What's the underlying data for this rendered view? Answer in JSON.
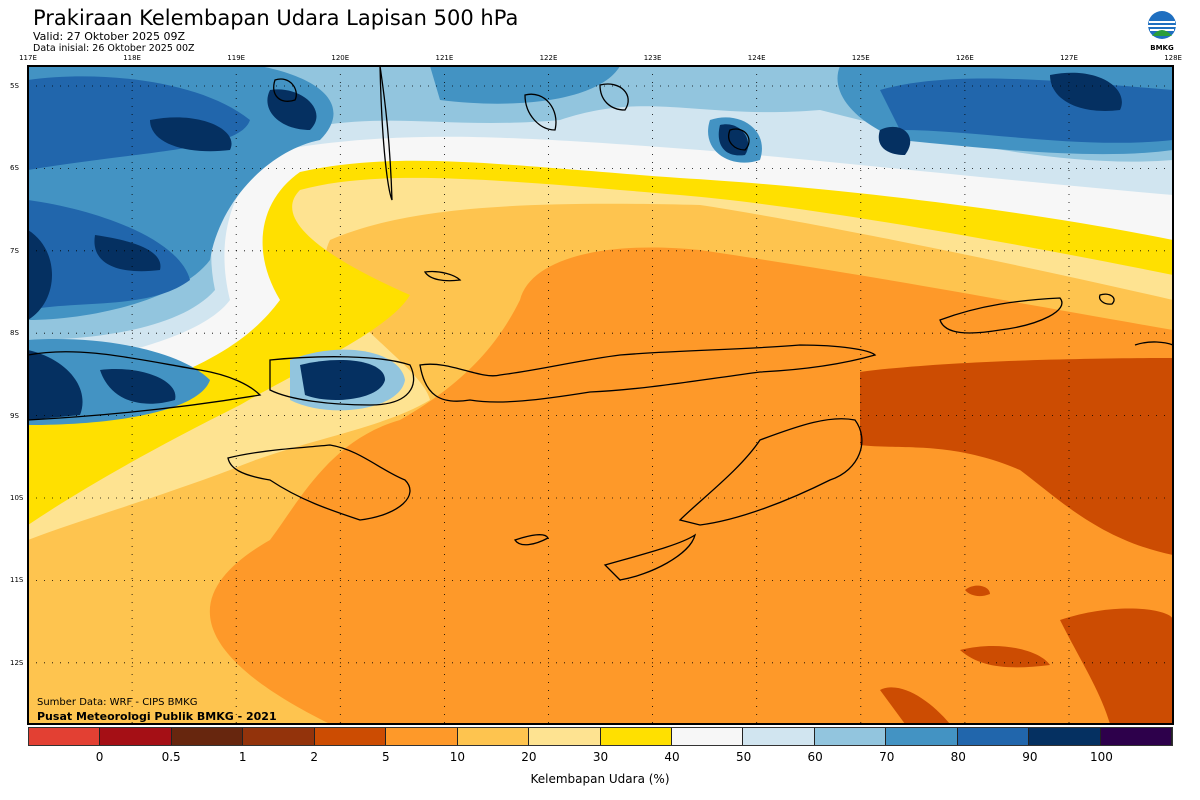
{
  "header": {
    "title": "Prakiraan Kelembapan Udara Lapisan 500 hPa",
    "valid": "Valid: 27 Oktober 2025 09Z",
    "init": "Data inisial: 26 Oktober 2025 00Z"
  },
  "logo": {
    "text": "BMKG"
  },
  "axes": {
    "lon_ticks": [
      "117E",
      "118E",
      "119E",
      "120E",
      "121E",
      "122E",
      "123E",
      "124E",
      "125E",
      "126E",
      "127E",
      "128E"
    ],
    "lat_ticks": [
      "5S",
      "6S",
      "7S",
      "8S",
      "9S",
      "10S",
      "11S",
      "12S"
    ]
  },
  "footer": {
    "source": "Sumber Data: WRF - CIPS BMKG",
    "credit": "Pusat Meteorologi Publik BMKG - 2021"
  },
  "colorbar": {
    "title": "Kelembapan Udara (%)",
    "labels": [
      "0",
      "0.5",
      "1",
      "2",
      "5",
      "10",
      "20",
      "30",
      "40",
      "50",
      "60",
      "70",
      "80",
      "90",
      "100"
    ],
    "colors": [
      "#e34033",
      "#a50f15",
      "#67260e",
      "#93330b",
      "#cc4c02",
      "#fe9929",
      "#fec44f",
      "#fee391",
      "#ffe000",
      "#f7f7f7",
      "#d1e5f0",
      "#92c5de",
      "#4393c3",
      "#2166ac",
      "#053061",
      "#2d004b"
    ]
  }
}
